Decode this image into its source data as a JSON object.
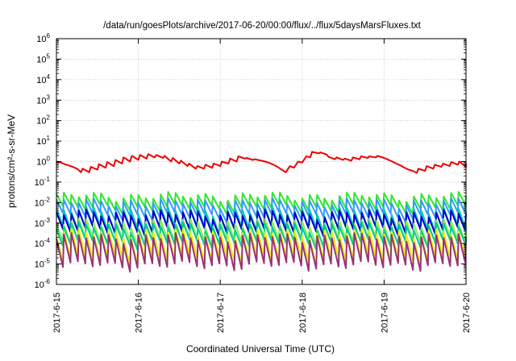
{
  "chart_data": {
    "type": "line",
    "title": "/data/run/goesPlots/archive/2017-06-20/00:00/flux/../flux/5daysMarsFluxes.txt",
    "xlabel": "Coordinated Universal Time (UTC)",
    "ylabel": "protons/cm²-s-sr-MeV",
    "x_ticks": [
      "2017-6-15",
      "2017-6-16",
      "2017-6-17",
      "2017-6-18",
      "2017-6-19",
      "2017-6-20"
    ],
    "y_scale": "log",
    "ylim": [
      1e-06,
      1000000.0
    ],
    "y_ticks": [
      {
        "base": "10",
        "exp": "-6"
      },
      {
        "base": "10",
        "exp": "-5"
      },
      {
        "base": "10",
        "exp": "-4"
      },
      {
        "base": "10",
        "exp": "-3"
      },
      {
        "base": "10",
        "exp": "-2"
      },
      {
        "base": "10",
        "exp": "-1"
      },
      {
        "base": "10",
        "exp": "0"
      },
      {
        "base": "10",
        "exp": "1"
      },
      {
        "base": "10",
        "exp": "2"
      },
      {
        "base": "10",
        "exp": "3"
      },
      {
        "base": "10",
        "exp": "4"
      },
      {
        "base": "10",
        "exp": "5"
      },
      {
        "base": "10",
        "exp": "6"
      }
    ],
    "grid": true,
    "x_unit": "days since 2017-6-15 00:00 UTC",
    "series": [
      {
        "color": "#ee0000",
        "x": [
          0,
          0.05,
          0.1,
          0.15,
          0.2,
          0.25,
          0.3,
          0.32,
          0.4,
          0.42,
          0.5,
          0.52,
          0.6,
          0.62,
          0.7,
          0.72,
          0.8,
          0.82,
          0.9,
          0.92,
          1.0,
          1.02,
          1.1,
          1.12,
          1.2,
          1.22,
          1.3,
          1.32,
          1.4,
          1.42,
          1.5,
          1.52,
          1.6,
          1.62,
          1.7,
          1.72,
          1.8,
          1.82,
          1.9,
          1.92,
          2.0,
          2.02,
          2.1,
          2.12,
          2.2,
          2.22,
          2.3,
          2.32,
          2.4,
          2.42,
          2.5,
          2.55,
          2.6,
          2.65,
          2.7,
          2.75,
          2.8,
          2.85,
          2.9,
          2.95,
          3.0,
          3.05,
          3.1,
          3.12,
          3.2,
          3.22,
          3.3,
          3.32,
          3.4,
          3.42,
          3.5,
          3.52,
          3.6,
          3.62,
          3.7,
          3.72,
          3.8,
          3.82,
          3.9,
          3.92,
          4.0,
          4.02,
          4.1,
          4.15,
          4.2,
          4.25,
          4.3,
          4.35,
          4.4,
          4.42,
          4.5,
          4.52,
          4.6,
          4.62,
          4.7,
          4.72,
          4.8,
          4.82,
          4.9,
          4.92,
          5.0,
          5.02
        ],
        "y": [
          1.0,
          0.9,
          0.75,
          0.65,
          0.55,
          0.45,
          0.3,
          0.45,
          0.3,
          0.55,
          0.4,
          0.75,
          0.5,
          0.95,
          0.6,
          1.2,
          0.8,
          1.6,
          1.0,
          1.9,
          1.2,
          2.1,
          1.4,
          2.3,
          1.6,
          2.1,
          1.5,
          1.9,
          1.0,
          1.5,
          0.8,
          1.1,
          0.6,
          0.8,
          0.45,
          0.6,
          0.45,
          0.7,
          0.5,
          0.8,
          0.6,
          1.0,
          0.8,
          1.4,
          1.0,
          1.8,
          1.4,
          1.5,
          1.2,
          1.3,
          1.1,
          1.0,
          0.85,
          0.7,
          0.55,
          0.4,
          0.3,
          0.6,
          0.5,
          1.0,
          0.9,
          1.8,
          1.6,
          3.0,
          2.5,
          2.8,
          2.2,
          1.7,
          1.3,
          1.6,
          1.2,
          1.4,
          1.1,
          1.6,
          1.3,
          1.8,
          1.5,
          1.8,
          1.6,
          1.9,
          1.5,
          1.4,
          1.0,
          0.8,
          0.65,
          0.5,
          0.4,
          0.35,
          0.28,
          0.45,
          0.35,
          0.6,
          0.45,
          0.7,
          0.55,
          0.8,
          0.6,
          0.95,
          0.7,
          1.0,
          0.55,
          0.8
        ]
      },
      {
        "color": "#2ee82e",
        "base": 0.018,
        "drop": 0.3
      },
      {
        "color": "#3399ff",
        "base": 0.009,
        "drop": 0.25
      },
      {
        "color": "#00c8b8",
        "base": 0.0035,
        "drop": 0.15
      },
      {
        "color": "#0000cc",
        "base": 0.0025,
        "drop": 0.18
      },
      {
        "color": "#88ee55",
        "base": 0.0009,
        "drop": 0.15
      },
      {
        "color": "#00cc99",
        "base": 0.0006,
        "drop": 0.18
      },
      {
        "color": "#eeee00",
        "base": 0.0003,
        "drop": 0.06
      },
      {
        "color": "#993377",
        "base": 0.00018,
        "drop": 0.05
      }
    ]
  }
}
